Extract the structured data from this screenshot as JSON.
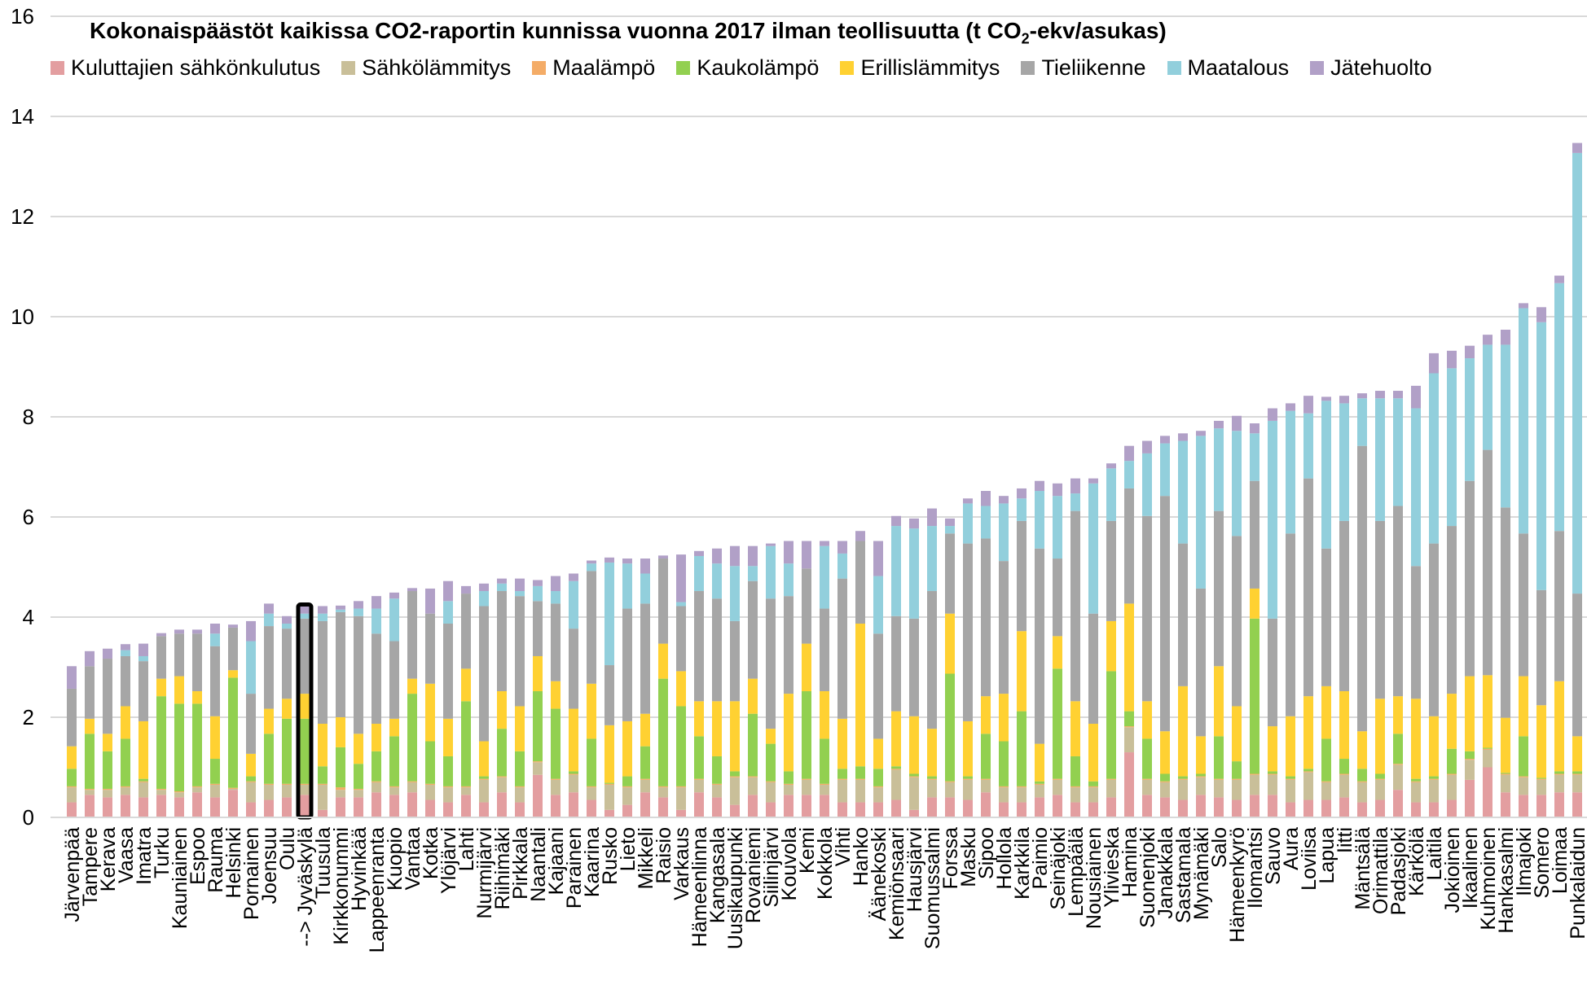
{
  "chart_data": {
    "type": "bar",
    "stacked": true,
    "title_main": "Kokonaispäästöt kaikissa CO2-raportin kunnissa vuonna 2017 ilman teollisuutta (t CO",
    "title_sub": "2",
    "title_tail": "-ekv/asukas)",
    "ylim": [
      0,
      16
    ],
    "yticks": [
      "0",
      "2",
      "4",
      "6",
      "8",
      "10",
      "12",
      "14",
      "16"
    ],
    "grid": "horizontal",
    "legend_position": "top",
    "highlight_marker": "-->",
    "highlight_index": 13,
    "series": [
      {
        "name": "Kuluttajien sähkönkulutus",
        "color": "#e39ea0"
      },
      {
        "name": "Sähkölämmitys",
        "color": "#c9bf99"
      },
      {
        "name": "Maalämpö",
        "color": "#f4ac67"
      },
      {
        "name": "Kaukolämpö",
        "color": "#92d050"
      },
      {
        "name": "Erillislämmitys",
        "color": "#ffd132"
      },
      {
        "name": "Tieliikenne",
        "color": "#a6a6a6"
      },
      {
        "name": "Maatalous",
        "color": "#92cfdc"
      },
      {
        "name": "Jätehuolto",
        "color": "#b1a0c7"
      }
    ],
    "categories": [
      "Järvenpää",
      "Tampere",
      "Kerava",
      "Vaasa",
      "Imatra",
      "Turku",
      "Kauniainen",
      "Espoo",
      "Rauma",
      "Helsinki",
      "Pornainen",
      "Joensuu",
      "Oulu",
      "Jyväskylä",
      "Tuusula",
      "Kirkkonummi",
      "Hyvinkää",
      "Lappeenranta",
      "Kuopio",
      "Vantaa",
      "Kotka",
      "Ylöjärvi",
      "Lahti",
      "Nurmijärvi",
      "Riihimäki",
      "Pirkkala",
      "Naantali",
      "Kajaani",
      "Parainen",
      "Kaarina",
      "Rusko",
      "Lieto",
      "Mikkeli",
      "Raisio",
      "Varkaus",
      "Hämeenlinna",
      "Kangasala",
      "Uusikaupunki",
      "Rovaniemi",
      "Siilinjärvi",
      "Kouvola",
      "Kemi",
      "Kokkola",
      "Vihti",
      "Hanko",
      "Äänekoski",
      "Kemiönsaari",
      "Hausjärvi",
      "Suomussalmi",
      "Forssa",
      "Masku",
      "Sipoo",
      "Hollola",
      "Karkkila",
      "Paimio",
      "Seinäjoki",
      "Lempäälä",
      "Nousiainen",
      "Ylivieska",
      "Hamina",
      "Suonenjoki",
      "Janakkala",
      "Sastamala",
      "Mynämäki",
      "Salo",
      "Hämeenkyrö",
      "Ilomantsi",
      "Sauvo",
      "Aura",
      "Loviisa",
      "Lapua",
      "Iitti",
      "Mäntsälä",
      "Orimattila",
      "Padasjoki",
      "Kärkölä",
      "Laitila",
      "Jokioinen",
      "Ikaalinen",
      "Kuhmoinen",
      "Hankasalmi",
      "Ilmajoki",
      "Somero",
      "Loimaa",
      "Punkalaidun"
    ],
    "values": [
      [
        0.3,
        0.3,
        0.02,
        0.35,
        0.45,
        1.15,
        0,
        0.45
      ],
      [
        0.45,
        0.1,
        0.02,
        1.1,
        0.3,
        1.05,
        0,
        0.3
      ],
      [
        0.4,
        0.15,
        0.02,
        0.75,
        0.35,
        1.5,
        0,
        0.2
      ],
      [
        0.45,
        0.15,
        0.02,
        0.95,
        0.65,
        1.0,
        0.12,
        0.12
      ],
      [
        0.4,
        0.3,
        0.02,
        0.05,
        1.15,
        1.2,
        0.1,
        0.25
      ],
      [
        0.45,
        0.1,
        0.02,
        1.85,
        0.35,
        0.85,
        0,
        0.06
      ],
      [
        0.4,
        0.1,
        0.02,
        1.75,
        0.55,
        0.85,
        0,
        0.08
      ],
      [
        0.5,
        0.1,
        0.02,
        1.65,
        0.25,
        1.15,
        0,
        0.08
      ],
      [
        0.4,
        0.25,
        0.02,
        0.5,
        0.85,
        1.4,
        0.25,
        0.2
      ],
      [
        0.55,
        0.02,
        0.02,
        2.2,
        0.15,
        0.85,
        0,
        0.06
      ],
      [
        0.3,
        0.4,
        0.02,
        0.1,
        0.45,
        1.2,
        1.05,
        0.4
      ],
      [
        0.35,
        0.3,
        0.02,
        1.0,
        0.5,
        1.65,
        0.25,
        0.2
      ],
      [
        0.4,
        0.25,
        0.02,
        1.3,
        0.4,
        1.4,
        0.1,
        0.15
      ],
      [
        0.45,
        0.2,
        0.02,
        1.3,
        0.5,
        1.5,
        0.1,
        0.15
      ],
      [
        0.15,
        0.5,
        0.02,
        0.35,
        0.85,
        2.05,
        0.15,
        0.15
      ],
      [
        0.4,
        0.15,
        0.05,
        0.8,
        0.6,
        2.1,
        0.05,
        0.08
      ],
      [
        0.4,
        0.15,
        0.02,
        0.5,
        0.6,
        2.35,
        0.15,
        0.15
      ],
      [
        0.5,
        0.2,
        0.02,
        0.6,
        0.55,
        1.8,
        0.5,
        0.25
      ],
      [
        0.45,
        0.15,
        0.02,
        1.0,
        0.35,
        1.55,
        0.85,
        0.12
      ],
      [
        0.5,
        0.2,
        0.02,
        1.75,
        0.3,
        1.75,
        0,
        0.06
      ],
      [
        0.35,
        0.3,
        0.02,
        0.85,
        1.15,
        1.4,
        0,
        0.5
      ],
      [
        0.3,
        0.3,
        0.02,
        0.6,
        0.75,
        1.9,
        0.45,
        0.4
      ],
      [
        0.45,
        0.15,
        0.02,
        1.7,
        0.65,
        1.5,
        0,
        0.15
      ],
      [
        0.3,
        0.45,
        0.02,
        0.05,
        0.7,
        2.7,
        0.3,
        0.15
      ],
      [
        0.5,
        0.3,
        0.02,
        0.95,
        0.75,
        2.0,
        0.15,
        0.1
      ],
      [
        0.3,
        0.3,
        0.02,
        0.7,
        0.9,
        2.2,
        0.1,
        0.25
      ],
      [
        0.85,
        0.25,
        0.02,
        1.4,
        0.7,
        1.1,
        0.3,
        0.12
      ],
      [
        0.45,
        0.3,
        0.02,
        1.4,
        0.55,
        1.55,
        0.25,
        0.3
      ],
      [
        0.5,
        0.35,
        0.02,
        0.05,
        1.25,
        1.6,
        0.95,
        0.15
      ],
      [
        0.35,
        0.25,
        0.02,
        0.95,
        1.1,
        2.25,
        0.15,
        0.06
      ],
      [
        0.15,
        0.5,
        0.02,
        0.02,
        1.15,
        1.2,
        2.05,
        0.1
      ],
      [
        0.25,
        0.35,
        0.02,
        0.2,
        1.1,
        2.25,
        0.9,
        0.1
      ],
      [
        0.5,
        0.25,
        0.02,
        0.65,
        0.65,
        2.2,
        0.6,
        0.3
      ],
      [
        0.4,
        0.2,
        0.02,
        2.15,
        0.7,
        1.7,
        0,
        0.06
      ],
      [
        0.15,
        0.45,
        0.02,
        1.6,
        0.7,
        1.3,
        0.08,
        0.95
      ],
      [
        0.5,
        0.25,
        0.02,
        0.85,
        0.7,
        2.2,
        0.7,
        0.1
      ],
      [
        0.4,
        0.25,
        0.02,
        0.55,
        1.1,
        2.05,
        0.7,
        0.3
      ],
      [
        0.25,
        0.55,
        0.02,
        0.1,
        1.4,
        1.6,
        1.1,
        0.4
      ],
      [
        0.45,
        0.35,
        0.02,
        1.25,
        0.7,
        1.95,
        0.3,
        0.4
      ],
      [
        0.3,
        0.4,
        0.02,
        0.75,
        0.3,
        2.6,
        1.05,
        0.05
      ],
      [
        0.45,
        0.2,
        0.02,
        0.25,
        1.55,
        1.95,
        0.65,
        0.45
      ],
      [
        0.45,
        0.3,
        0.02,
        1.75,
        0.95,
        1.5,
        0,
        0.55
      ],
      [
        0.45,
        0.2,
        0.02,
        0.9,
        0.95,
        1.65,
        1.25,
        0.1
      ],
      [
        0.3,
        0.45,
        0.02,
        0.2,
        1.0,
        2.8,
        0.5,
        0.25
      ],
      [
        0.3,
        0.45,
        0.02,
        0.25,
        2.85,
        1.65,
        0,
        0.2
      ],
      [
        0.3,
        0.3,
        0.02,
        0.35,
        0.6,
        2.1,
        1.15,
        0.7
      ],
      [
        0.35,
        0.6,
        0.02,
        0.05,
        1.1,
        1.9,
        1.8,
        0.2
      ],
      [
        0.15,
        0.65,
        0.02,
        0.05,
        1.15,
        1.95,
        1.8,
        0.2
      ],
      [
        0.4,
        0.35,
        0.02,
        0.05,
        0.95,
        2.75,
        1.3,
        0.35
      ],
      [
        0.4,
        0.3,
        0.02,
        2.15,
        1.2,
        1.6,
        0.15,
        0.15
      ],
      [
        0.35,
        0.4,
        0.02,
        0.05,
        1.1,
        3.55,
        0.8,
        0.1
      ],
      [
        0.5,
        0.25,
        0.02,
        0.9,
        0.75,
        3.15,
        0.65,
        0.3
      ],
      [
        0.3,
        0.3,
        0.02,
        0.9,
        0.95,
        2.65,
        1.15,
        0.15
      ],
      [
        0.3,
        0.3,
        0.02,
        1.5,
        1.6,
        2.2,
        0.45,
        0.2
      ],
      [
        0.4,
        0.25,
        0.02,
        0.05,
        0.75,
        3.9,
        1.15,
        0.2
      ],
      [
        0.45,
        0.3,
        0.02,
        2.2,
        0.65,
        1.55,
        1.25,
        0.25
      ],
      [
        0.3,
        0.3,
        0.02,
        0.6,
        1.1,
        3.8,
        0.35,
        0.3
      ],
      [
        0.3,
        0.3,
        0.02,
        0.1,
        1.15,
        2.2,
        2.6,
        0.1
      ],
      [
        0.4,
        0.35,
        0.02,
        2.15,
        1.0,
        2.0,
        1.05,
        0.1
      ],
      [
        1.3,
        0.5,
        0.02,
        0.3,
        2.15,
        2.3,
        0.55,
        0.3
      ],
      [
        0.45,
        0.3,
        0.02,
        0.8,
        0.75,
        3.7,
        1.25,
        0.25
      ],
      [
        0.4,
        0.3,
        0.02,
        0.15,
        0.85,
        4.7,
        1.05,
        0.15
      ],
      [
        0.35,
        0.4,
        0.02,
        0.05,
        1.8,
        2.85,
        2.05,
        0.15
      ],
      [
        0.45,
        0.35,
        0.02,
        0.05,
        0.75,
        2.95,
        3.05,
        0.1
      ],
      [
        0.4,
        0.35,
        0.02,
        0.85,
        1.4,
        3.1,
        1.65,
        0.15
      ],
      [
        0.35,
        0.4,
        0.02,
        0.35,
        1.1,
        3.4,
        2.1,
        0.3
      ],
      [
        0.45,
        0.4,
        0.02,
        3.1,
        0.6,
        2.15,
        0.95,
        0.2
      ],
      [
        0.45,
        0.4,
        0.02,
        0.05,
        0.9,
        2.15,
        3.95,
        0.25
      ],
      [
        0.3,
        0.45,
        0.02,
        0.05,
        1.2,
        3.65,
        2.45,
        0.15
      ],
      [
        0.35,
        0.55,
        0.02,
        0.05,
        1.45,
        4.35,
        1.3,
        0.35
      ],
      [
        0.35,
        0.35,
        0.02,
        0.85,
        1.05,
        2.75,
        2.95,
        0.08
      ],
      [
        0.4,
        0.45,
        0.02,
        0.3,
        1.35,
        3.4,
        2.35,
        0.15
      ],
      [
        0.3,
        0.4,
        0.02,
        0.25,
        0.75,
        5.7,
        0.95,
        0.1
      ],
      [
        0.35,
        0.4,
        0.02,
        0.1,
        1.5,
        3.55,
        2.45,
        0.15
      ],
      [
        0.55,
        0.5,
        0.02,
        0.6,
        0.75,
        3.8,
        2.15,
        0.15
      ],
      [
        0.3,
        0.4,
        0.02,
        0.05,
        1.6,
        2.65,
        3.15,
        0.45
      ],
      [
        0.3,
        0.45,
        0.02,
        0.05,
        1.2,
        3.45,
        3.4,
        0.4
      ],
      [
        0.35,
        0.5,
        0.02,
        0.5,
        1.1,
        3.35,
        3.15,
        0.35
      ],
      [
        0.75,
        0.4,
        0.02,
        0.15,
        1.5,
        3.9,
        2.45,
        0.25
      ],
      [
        1.0,
        0.35,
        0.02,
        0.02,
        1.45,
        4.5,
        2.1,
        0.2
      ],
      [
        0.5,
        0.35,
        0.02,
        0.02,
        1.1,
        4.2,
        3.25,
        0.3
      ],
      [
        0.45,
        0.35,
        0.02,
        0.8,
        1.2,
        2.85,
        4.5,
        0.1
      ],
      [
        0.45,
        0.3,
        0.02,
        0.02,
        1.45,
        2.3,
        5.35,
        0.3
      ],
      [
        0.5,
        0.35,
        0.02,
        0.05,
        1.8,
        3.0,
        4.95,
        0.15
      ],
      [
        0.5,
        0.35,
        0.02,
        0.05,
        0.7,
        2.85,
        8.8,
        0.2
      ]
    ]
  }
}
